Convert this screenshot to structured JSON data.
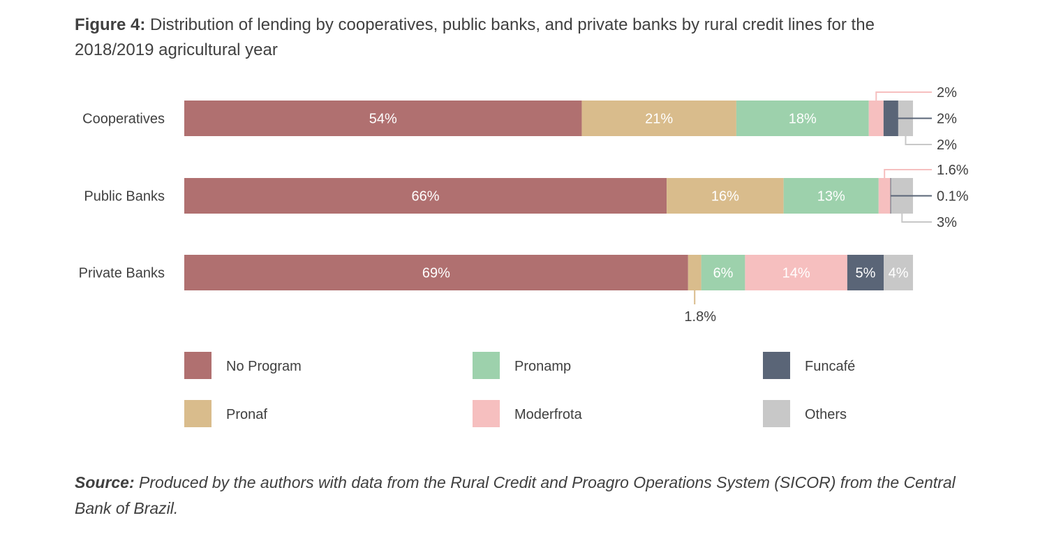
{
  "title": {
    "prefix": "Figure 4:",
    "text": "Distribution of lending by cooperatives, public banks, and private banks by rural credit lines for the 2018/2019 agricultural year"
  },
  "source": {
    "prefix": "Source:",
    "text": "Produced by the authors with data from the Rural Credit and Proagro Operations System (SICOR) from the Central Bank of Brazil."
  },
  "chart_data": {
    "type": "bar",
    "orientation": "horizontal",
    "stacked": true,
    "unit": "%",
    "categories": [
      "Cooperatives",
      "Public Banks",
      "Private Banks"
    ],
    "series": [
      {
        "name": "No Program",
        "color": "#b07070",
        "values": [
          54,
          66,
          69
        ],
        "labels": [
          "54%",
          "66%",
          "69%"
        ]
      },
      {
        "name": "Pronaf",
        "color": "#d9bc8c",
        "values": [
          21,
          16,
          1.8
        ],
        "labels": [
          "21%",
          "16%",
          "1.8%"
        ]
      },
      {
        "name": "Pronamp",
        "color": "#9dd1ac",
        "values": [
          18,
          13,
          6
        ],
        "labels": [
          "18%",
          "13%",
          "6%"
        ]
      },
      {
        "name": "Moderfrota",
        "color": "#f6bfbf",
        "values": [
          2,
          1.6,
          14
        ],
        "labels": [
          "2%",
          "1.6%",
          "14%"
        ]
      },
      {
        "name": "Funcafé",
        "color": "#5a6577",
        "values": [
          2,
          0.1,
          5
        ],
        "labels": [
          "2%",
          "0.1%",
          "5%"
        ]
      },
      {
        "name": "Others",
        "color": "#c8c8c8",
        "values": [
          2,
          3,
          4
        ],
        "labels": [
          "2%",
          "3%",
          "4%"
        ]
      }
    ],
    "legend_position": "bottom",
    "grid": false
  }
}
